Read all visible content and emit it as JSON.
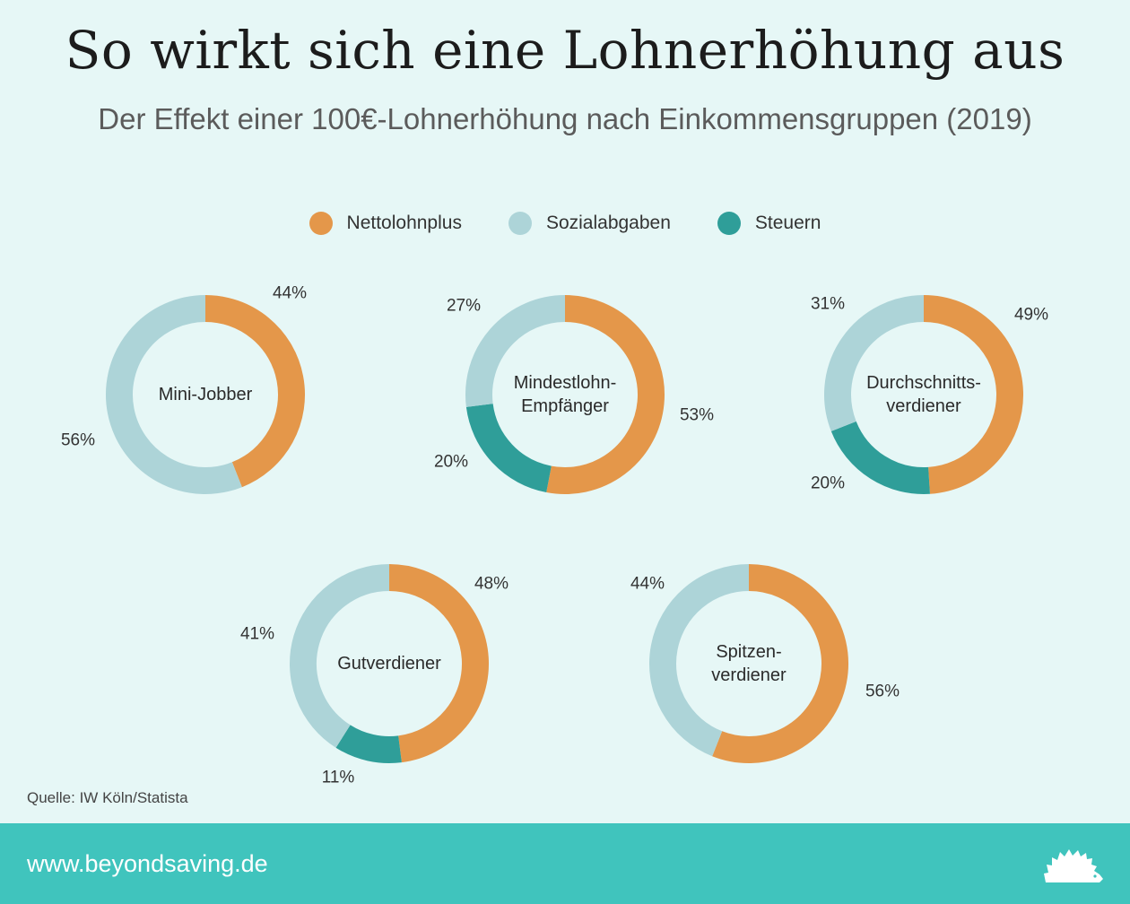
{
  "title": "So wirkt sich eine Lohnerhöhung aus",
  "subtitle": "Der Effekt einer 100€-Lohnerhöhung nach Einkommensgruppen (2019)",
  "legend": [
    {
      "label": "Nettolohnplus",
      "color": "#e4974a"
    },
    {
      "label": "Sozialabgaben",
      "color": "#add4d8"
    },
    {
      "label": "Steuern",
      "color": "#2f9e99"
    }
  ],
  "chart_data": [
    {
      "type": "pie",
      "center_label": [
        "Mini-Jobber"
      ],
      "slices": [
        {
          "name": "Nettolohnplus",
          "value": 44,
          "label": "44%"
        },
        {
          "name": "Sozialabgaben",
          "value": 56,
          "label": "56%"
        }
      ]
    },
    {
      "type": "pie",
      "center_label": [
        "Mindestlohn-",
        "Empfänger"
      ],
      "slices": [
        {
          "name": "Nettolohnplus",
          "value": 53,
          "label": "53%"
        },
        {
          "name": "Steuern",
          "value": 20,
          "label": "20%"
        },
        {
          "name": "Sozialabgaben",
          "value": 27,
          "label": "27%"
        }
      ]
    },
    {
      "type": "pie",
      "center_label": [
        "Durchschnitts-",
        "verdiener"
      ],
      "slices": [
        {
          "name": "Nettolohnplus",
          "value": 49,
          "label": "49%"
        },
        {
          "name": "Steuern",
          "value": 20,
          "label": "20%"
        },
        {
          "name": "Sozialabgaben",
          "value": 31,
          "label": "31%"
        }
      ]
    },
    {
      "type": "pie",
      "center_label": [
        "Gutverdiener"
      ],
      "slices": [
        {
          "name": "Nettolohnplus",
          "value": 48,
          "label": "48%"
        },
        {
          "name": "Steuern",
          "value": 11,
          "label": "11%"
        },
        {
          "name": "Sozialabgaben",
          "value": 41,
          "label": "41%"
        }
      ]
    },
    {
      "type": "pie",
      "center_label": [
        "Spitzen-",
        "verdiener"
      ],
      "slices": [
        {
          "name": "Nettolohnplus",
          "value": 56,
          "label": "56%"
        },
        {
          "name": "Sozialabgaben",
          "value": 44,
          "label": "44%"
        }
      ]
    }
  ],
  "source": "Quelle: IW Köln/Statista",
  "footer": {
    "url": "www.beyondsaving.de",
    "logo_icon": "hedgehog-icon"
  }
}
